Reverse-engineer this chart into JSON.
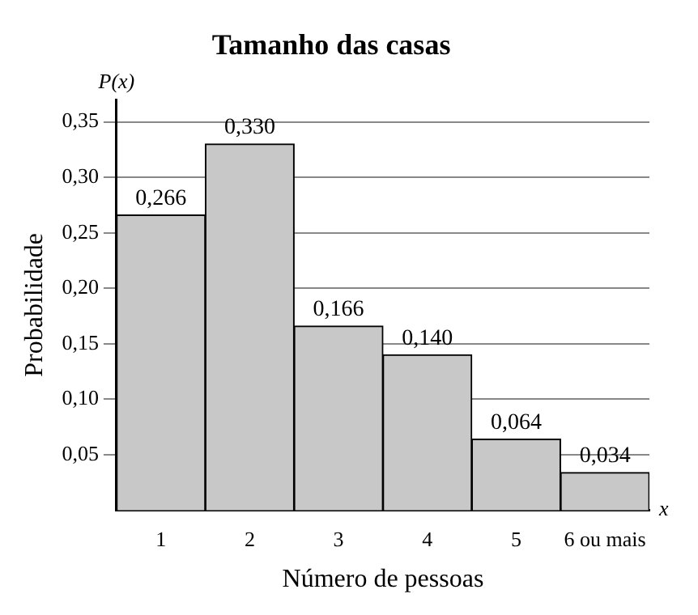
{
  "chart_data": {
    "type": "bar",
    "title": "Tamanho das casas",
    "xlabel": "Número de pessoas",
    "ylabel": "Probabilidade",
    "annotations": [
      "P(x)",
      "x"
    ],
    "categories": [
      "1",
      "2",
      "3",
      "4",
      "5",
      "6 ou mais"
    ],
    "values": [
      0.266,
      0.33,
      0.166,
      0.14,
      0.064,
      0.034
    ],
    "value_labels": [
      "0,266",
      "0,330",
      "0,166",
      "0,140",
      "0,064",
      "0,034"
    ],
    "color": "#c8c8c8",
    "ylim": [
      0,
      0.37
    ],
    "yticks": [
      {
        "value": 0.05,
        "label": "0,05"
      },
      {
        "value": 0.1,
        "label": "0,10"
      },
      {
        "value": 0.15,
        "label": "0,15"
      },
      {
        "value": 0.2,
        "label": "0,20"
      },
      {
        "value": 0.25,
        "label": "0,25"
      },
      {
        "value": 0.3,
        "label": "0,30"
      },
      {
        "value": 0.35,
        "label": "0,35"
      }
    ],
    "grid": "y",
    "legend": false
  }
}
